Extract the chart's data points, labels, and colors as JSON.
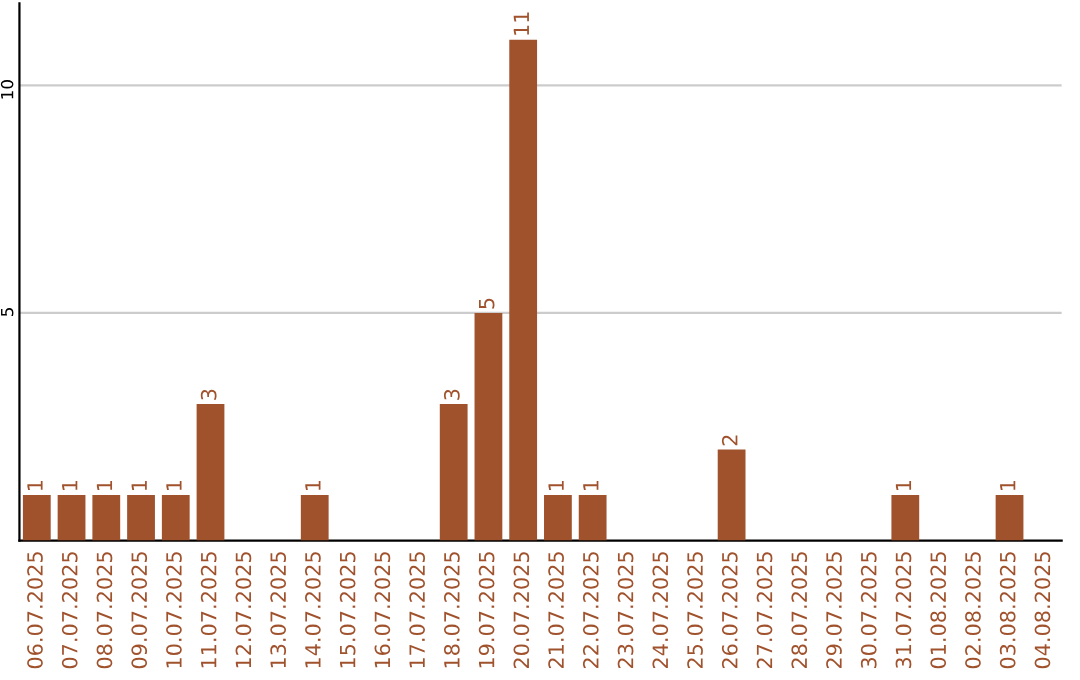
{
  "chart_data": {
    "type": "bar",
    "categories": [
      "06.07.2025",
      "07.07.2025",
      "08.07.2025",
      "09.07.2025",
      "10.07.2025",
      "11.07.2025",
      "12.07.2025",
      "13.07.2025",
      "14.07.2025",
      "15.07.2025",
      "16.07.2025",
      "17.07.2025",
      "18.07.2025",
      "19.07.2025",
      "20.07.2025",
      "21.07.2025",
      "22.07.2025",
      "23.07.2025",
      "24.07.2025",
      "25.07.2025",
      "26.07.2025",
      "27.07.2025",
      "28.07.2025",
      "29.07.2025",
      "30.07.2025",
      "31.07.2025",
      "01.08.2025",
      "02.08.2025",
      "03.08.2025",
      "04.08.2025"
    ],
    "values": [
      1,
      1,
      1,
      1,
      1,
      3,
      0,
      0,
      1,
      0,
      0,
      0,
      3,
      5,
      11,
      1,
      1,
      0,
      0,
      0,
      2,
      0,
      0,
      0,
      0,
      1,
      0,
      0,
      1,
      0
    ],
    "value_labels": [
      "1",
      "1",
      "1",
      "1",
      "1",
      "3",
      null,
      null,
      "1",
      null,
      null,
      null,
      "3",
      "5",
      "11",
      "1",
      "1",
      null,
      null,
      null,
      "2",
      null,
      null,
      null,
      null,
      "1",
      null,
      null,
      "1",
      null
    ],
    "color": "#a0522d",
    "ylim": [
      0,
      11.8
    ],
    "yticks": [
      5,
      10
    ],
    "grid": "y"
  }
}
